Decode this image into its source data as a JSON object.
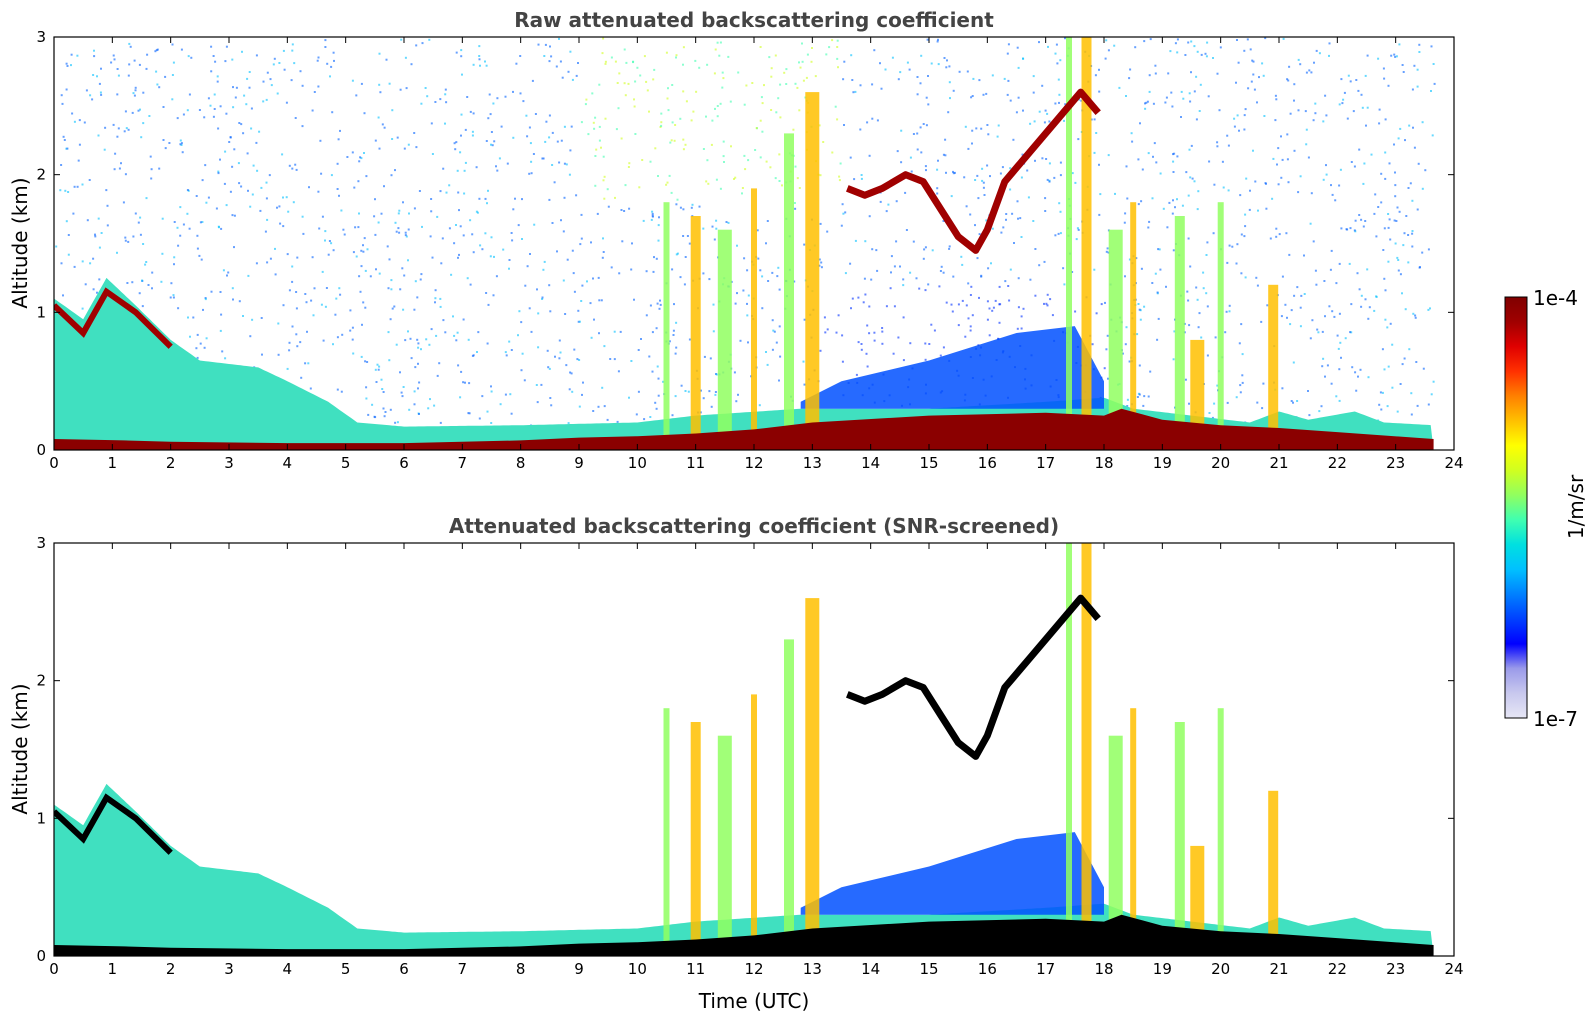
{
  "chart_data": [
    {
      "type": "heatmap",
      "title": "Raw attenuated backscattering coefficient",
      "xlabel": "",
      "ylabel": "Altitude (km)",
      "xlim": [
        0,
        24
      ],
      "ylim": [
        0,
        3
      ],
      "xticks": [
        "0",
        "1",
        "2",
        "3",
        "4",
        "5",
        "6",
        "7",
        "8",
        "9",
        "10",
        "11",
        "12",
        "13",
        "14",
        "15",
        "16",
        "17",
        "18",
        "19",
        "20",
        "21",
        "22",
        "23",
        "24"
      ],
      "yticks": [
        "0",
        "1",
        "2",
        "3"
      ],
      "data_end_hour": 23.65,
      "surface_layer": [
        [
          0,
          0.08
        ],
        [
          1.2,
          0.07
        ],
        [
          2,
          0.06
        ],
        [
          4,
          0.05
        ],
        [
          6,
          0.05
        ],
        [
          8,
          0.07
        ],
        [
          9,
          0.09
        ],
        [
          10,
          0.1
        ],
        [
          11,
          0.12
        ],
        [
          12,
          0.15
        ],
        [
          13,
          0.2
        ],
        [
          15,
          0.25
        ],
        [
          17,
          0.27
        ],
        [
          18,
          0.25
        ],
        [
          18.3,
          0.3
        ],
        [
          19,
          0.22
        ],
        [
          20,
          0.18
        ],
        [
          21,
          0.16
        ],
        [
          22,
          0.13
        ],
        [
          23.65,
          0.08
        ]
      ],
      "boundary_layer_top": [
        [
          0,
          1.1
        ],
        [
          0.5,
          0.95
        ],
        [
          0.9,
          1.25
        ],
        [
          1.4,
          1.05
        ],
        [
          2,
          0.8
        ],
        [
          2.5,
          0.65
        ],
        [
          3.5,
          0.6
        ],
        [
          4,
          0.5
        ],
        [
          4.7,
          0.35
        ],
        [
          5.2,
          0.2
        ],
        [
          6,
          0.17
        ],
        [
          8,
          0.18
        ],
        [
          10,
          0.2
        ],
        [
          11,
          0.25
        ],
        [
          12.8,
          0.3
        ],
        [
          15,
          0.3
        ],
        [
          17,
          0.35
        ],
        [
          18,
          0.38
        ],
        [
          18.5,
          0.3
        ],
        [
          19.5,
          0.25
        ],
        [
          20.5,
          0.2
        ],
        [
          21,
          0.28
        ],
        [
          21.5,
          0.22
        ],
        [
          22.3,
          0.28
        ],
        [
          22.8,
          0.2
        ],
        [
          23.65,
          0.18
        ]
      ],
      "cloud_layer": [
        [
          13.6,
          1.9
        ],
        [
          13.9,
          1.85
        ],
        [
          14.2,
          1.9
        ],
        [
          14.6,
          2.0
        ],
        [
          14.9,
          1.95
        ],
        [
          15.2,
          1.75
        ],
        [
          15.5,
          1.55
        ],
        [
          15.8,
          1.45
        ],
        [
          16,
          1.6
        ],
        [
          16.3,
          1.95
        ],
        [
          16.7,
          2.15
        ],
        [
          17,
          2.3
        ],
        [
          17.3,
          2.45
        ],
        [
          17.6,
          2.6
        ],
        [
          17.9,
          2.45
        ]
      ],
      "convective_columns": [
        [
          10.5,
          1.8
        ],
        [
          11.0,
          1.7
        ],
        [
          11.5,
          1.6
        ],
        [
          12.0,
          1.9
        ],
        [
          12.6,
          2.3
        ],
        [
          13.0,
          2.6
        ],
        [
          17.4,
          3.0
        ],
        [
          17.7,
          3.0
        ],
        [
          18.2,
          1.6
        ],
        [
          18.5,
          1.8
        ],
        [
          19.3,
          1.7
        ],
        [
          19.6,
          0.8
        ],
        [
          20.0,
          1.8
        ],
        [
          20.9,
          1.2
        ]
      ],
      "colorbar": {
        "scale": "log",
        "min": "1e-7",
        "max": "1e-4",
        "label": "1/m/sr"
      }
    },
    {
      "type": "heatmap",
      "title": "Attenuated backscattering coefficient (SNR-screened)",
      "xlabel": "Time (UTC)",
      "ylabel": "Altitude (km)",
      "xlim": [
        0,
        24
      ],
      "ylim": [
        0,
        3
      ],
      "xticks": [
        "0",
        "1",
        "2",
        "3",
        "4",
        "5",
        "6",
        "7",
        "8",
        "9",
        "10",
        "11",
        "12",
        "13",
        "14",
        "15",
        "16",
        "17",
        "18",
        "19",
        "20",
        "21",
        "22",
        "23",
        "24"
      ],
      "yticks": [
        "0",
        "1",
        "2",
        "3"
      ],
      "data_end_hour": 23.65,
      "screened": true,
      "colorbar": {
        "scale": "log",
        "min": "1e-7",
        "max": "1e-4",
        "label": "1/m/sr"
      }
    }
  ],
  "colorbar": {
    "top_label": "1e-4",
    "bottom_label": "1e-7",
    "unit_label": "1/m/sr",
    "colors": [
      "#e6e6f5",
      "#c8c8ee",
      "#9a9aea",
      "#0000ff",
      "#0040ff",
      "#0080ff",
      "#00c0ff",
      "#00e0e0",
      "#40ffb0",
      "#90ff60",
      "#d0ff20",
      "#ffff00",
      "#ffc000",
      "#ff8000",
      "#ff3000",
      "#e00000",
      "#a00000",
      "#800000"
    ]
  }
}
